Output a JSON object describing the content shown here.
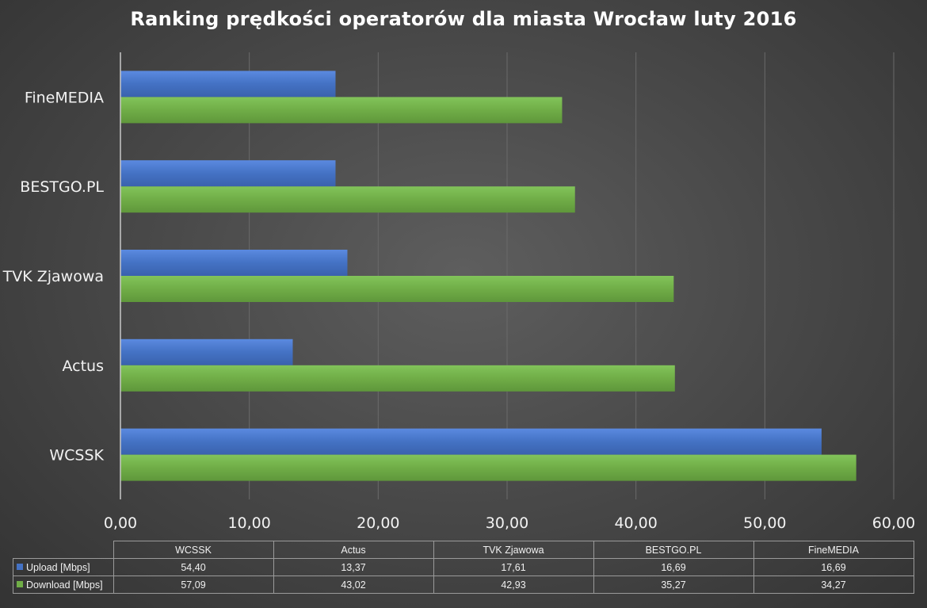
{
  "chart_data": {
    "type": "bar",
    "orientation": "horizontal",
    "title": "Ranking prędkości operatorów dla miasta Wrocław luty 2016",
    "categories": [
      "WCSSK",
      "Actus",
      "TVK Zjawowa",
      "BESTGO.PL",
      "FineMEDIA"
    ],
    "series": [
      {
        "name": "Upload [Mbps]",
        "color": "#4472c4",
        "values": [
          54.4,
          13.37,
          17.61,
          16.69,
          16.69
        ]
      },
      {
        "name": "Download [Mbps]",
        "color": "#70ad47",
        "values": [
          57.09,
          43.02,
          42.93,
          35.27,
          34.27
        ]
      }
    ],
    "xlim": [
      0,
      60
    ],
    "xticks": [
      "0,00",
      "10,00",
      "20,00",
      "30,00",
      "40,00",
      "50,00",
      "60,00"
    ],
    "grid": true,
    "data_table": {
      "columns": [
        "WCSSK",
        "Actus",
        "TVK Zjawowa",
        "BESTGO.PL",
        "FineMEDIA"
      ],
      "rows": [
        {
          "name": "Upload [Mbps]",
          "values": [
            "54,40",
            "13,37",
            "17,61",
            "16,69",
            "16,69"
          ]
        },
        {
          "name": "Download [Mbps]",
          "values": [
            "57,09",
            "43,02",
            "42,93",
            "35,27",
            "34,27"
          ]
        }
      ]
    }
  }
}
